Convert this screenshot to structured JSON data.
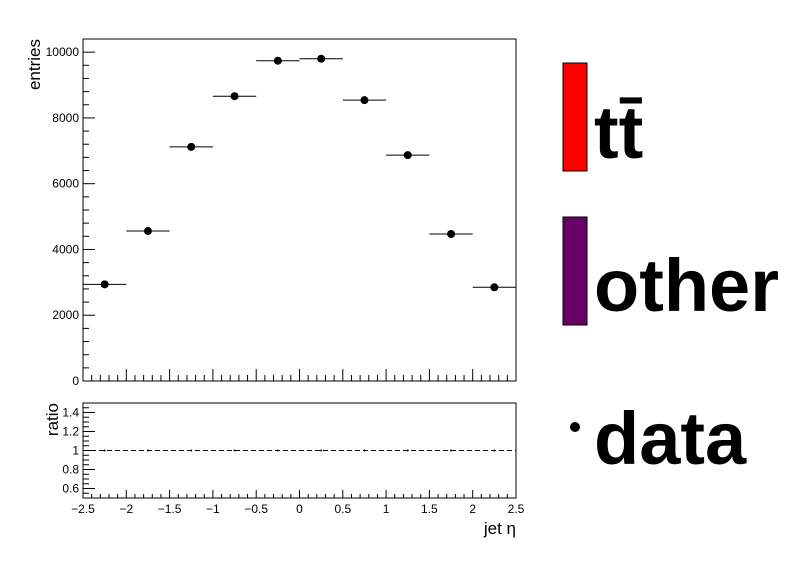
{
  "chart_data": [
    {
      "type": "scatter",
      "panel": "main",
      "xlabel": "jet η",
      "ylabel": "entries",
      "xlim": [
        -2.5,
        2.5
      ],
      "ylim": [
        0,
        10400
      ],
      "y_ticks": [
        "0",
        "2000",
        "4000",
        "6000",
        "8000",
        "10000"
      ],
      "y_tick_values": [
        0,
        2000,
        4000,
        6000,
        8000,
        10000
      ],
      "grid": false,
      "series": [
        {
          "name": "data",
          "bin_edges": [
            -2.5,
            -2.0,
            -1.5,
            -1.0,
            -0.5,
            0.0,
            0.5,
            1.0,
            1.5,
            2.0,
            2.5
          ],
          "x": [
            -2.25,
            -1.75,
            -1.25,
            -0.75,
            -0.25,
            0.25,
            0.75,
            1.25,
            1.75,
            2.25
          ],
          "y": [
            2940,
            4560,
            7120,
            8660,
            9740,
            9800,
            8540,
            6870,
            4470,
            2850
          ]
        }
      ]
    },
    {
      "type": "line",
      "panel": "ratio",
      "xlabel": "jet η",
      "ylabel": "ratio",
      "xlim": [
        -2.5,
        2.5
      ],
      "ylim": [
        0.5,
        1.5
      ],
      "x_ticks": [
        "−2.5",
        "−2",
        "−1.5",
        "−1",
        "−0.5",
        "0",
        "0.5",
        "1",
        "1.5",
        "2",
        "2.5"
      ],
      "x_tick_values": [
        -2.5,
        -2,
        -1.5,
        -1,
        -0.5,
        0,
        0.5,
        1,
        1.5,
        2,
        2.5
      ],
      "y_ticks": [
        "0.6",
        "0.8",
        "1",
        "1.2",
        "1.4"
      ],
      "y_tick_values": [
        0.6,
        0.8,
        1.0,
        1.2,
        1.4
      ],
      "reference_line": 1.0,
      "series": [
        {
          "x": [
            -2.25,
            -1.75,
            -1.25,
            -0.75,
            -0.25,
            0.25,
            0.75,
            1.25,
            1.75,
            2.25
          ],
          "y": [
            1,
            1,
            1,
            1,
            1,
            1,
            1,
            1,
            1,
            1
          ]
        }
      ]
    }
  ],
  "legend": {
    "placement": "right",
    "entries": [
      {
        "label": "tt̄",
        "kind": "box",
        "color": "#ff0000"
      },
      {
        "label": "other",
        "kind": "box",
        "color": "#660066"
      },
      {
        "label": "data",
        "kind": "marker",
        "color": "#000000"
      }
    ]
  }
}
